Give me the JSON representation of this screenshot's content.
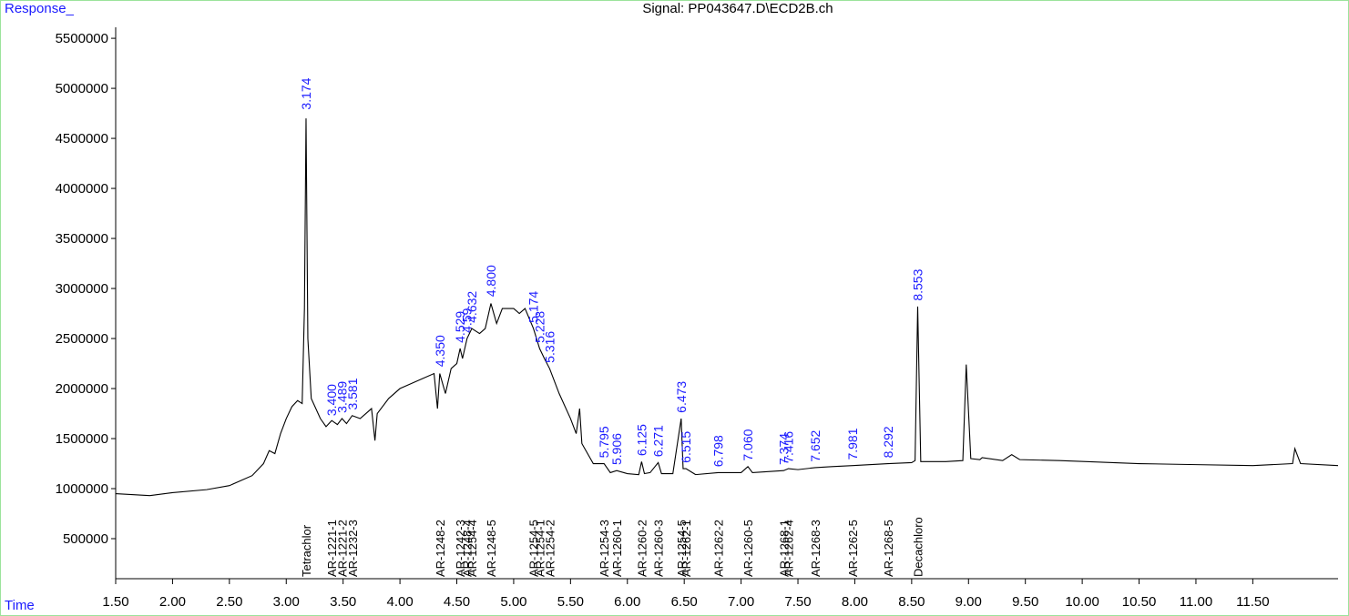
{
  "chart_data": {
    "type": "line",
    "title": "Signal: PP043647.D\\ECD2B.ch",
    "y_label": "Response_",
    "x_label": "Time",
    "xlim": [
      1.5,
      12.25
    ],
    "ylim": [
      100000,
      5610000
    ],
    "xticks": [
      {
        "value": 1.5,
        "label": "1.50"
      },
      {
        "value": 2,
        "label": "2.00"
      },
      {
        "value": 2.5,
        "label": "2.50"
      },
      {
        "value": 3,
        "label": "3.00"
      },
      {
        "value": 3.5,
        "label": "3.50"
      },
      {
        "value": 4,
        "label": "4.00"
      },
      {
        "value": 4.5,
        "label": "4.50"
      },
      {
        "value": 5,
        "label": "5.00"
      },
      {
        "value": 5.5,
        "label": "5.50"
      },
      {
        "value": 6,
        "label": "6.00"
      },
      {
        "value": 6.5,
        "label": "6.50"
      },
      {
        "value": 7,
        "label": "7.00"
      },
      {
        "value": 7.5,
        "label": "7.50"
      },
      {
        "value": 8,
        "label": "8.00"
      },
      {
        "value": 8.5,
        "label": "8.50"
      },
      {
        "value": 9,
        "label": "9.00"
      },
      {
        "value": 9.5,
        "label": "9.50"
      },
      {
        "value": 10,
        "label": "10.00"
      },
      {
        "value": 10.5,
        "label": "10.50"
      },
      {
        "value": 11,
        "label": "11.00"
      },
      {
        "value": 11.5,
        "label": "11.50"
      }
    ],
    "yticks": [
      500000,
      1000000,
      1500000,
      2000000,
      2500000,
      3000000,
      3500000,
      4000000,
      4500000,
      5000000,
      5500000
    ],
    "x": [
      1.5,
      1.8,
      2.0,
      2.3,
      2.5,
      2.7,
      2.8,
      2.85,
      2.9,
      2.95,
      3.0,
      3.05,
      3.1,
      3.14,
      3.16,
      3.174,
      3.19,
      3.22,
      3.3,
      3.35,
      3.4,
      3.45,
      3.49,
      3.53,
      3.58,
      3.65,
      3.7,
      3.75,
      3.78,
      3.8,
      3.9,
      4.0,
      4.1,
      4.2,
      4.3,
      4.33,
      4.35,
      4.4,
      4.45,
      4.5,
      4.529,
      4.55,
      4.59,
      4.632,
      4.7,
      4.75,
      4.8,
      4.85,
      4.9,
      5.0,
      5.05,
      5.1,
      5.174,
      5.228,
      5.27,
      5.316,
      5.4,
      5.5,
      5.55,
      5.58,
      5.6,
      5.7,
      5.795,
      5.85,
      5.906,
      6.0,
      6.1,
      6.125,
      6.15,
      6.2,
      6.271,
      6.3,
      6.4,
      6.473,
      6.49,
      6.515,
      6.6,
      6.798,
      7.0,
      7.06,
      7.1,
      7.374,
      7.416,
      7.5,
      7.652,
      7.8,
      7.981,
      8.292,
      8.5,
      8.53,
      8.553,
      8.58,
      8.8,
      8.95,
      8.98,
      9.02,
      9.1,
      9.12,
      9.3,
      9.38,
      9.45,
      9.8,
      10.5,
      11.0,
      11.5,
      11.85,
      11.87,
      11.92,
      12.25
    ],
    "series": [
      {
        "name": "ECD2B",
        "color": "#000000",
        "values": [
          950000,
          930000,
          960000,
          990000,
          1030000,
          1130000,
          1250000,
          1380000,
          1350000,
          1550000,
          1700000,
          1820000,
          1880000,
          1850000,
          2800000,
          4700000,
          2500000,
          1900000,
          1700000,
          1620000,
          1680000,
          1640000,
          1700000,
          1650000,
          1730000,
          1700000,
          1750000,
          1800000,
          1480000,
          1750000,
          1900000,
          2000000,
          2050000,
          2100000,
          2150000,
          1800000,
          2150000,
          1950000,
          2200000,
          2250000,
          2400000,
          2300000,
          2500000,
          2600000,
          2550000,
          2600000,
          2850000,
          2650000,
          2800000,
          2800000,
          2750000,
          2800000,
          2600000,
          2400000,
          2300000,
          2200000,
          1950000,
          1700000,
          1550000,
          1800000,
          1450000,
          1250000,
          1250000,
          1160000,
          1180000,
          1150000,
          1140000,
          1270000,
          1150000,
          1160000,
          1260000,
          1150000,
          1150000,
          1700000,
          1200000,
          1200000,
          1140000,
          1160000,
          1160000,
          1220000,
          1160000,
          1180000,
          1200000,
          1190000,
          1210000,
          1220000,
          1230000,
          1250000,
          1260000,
          1280000,
          2820000,
          1270000,
          1270000,
          1280000,
          2240000,
          1300000,
          1290000,
          1310000,
          1280000,
          1340000,
          1290000,
          1280000,
          1250000,
          1240000,
          1230000,
          1250000,
          1400000,
          1250000,
          1230000
        ]
      }
    ],
    "peaks": [
      {
        "value": 3.174,
        "label": "3.174",
        "response": 4750000
      },
      {
        "value": 3.4,
        "label": "3.400",
        "response": 1690000
      },
      {
        "value": 3.489,
        "label": "3.489",
        "response": 1720000
      },
      {
        "value": 3.581,
        "label": "3.581",
        "response": 1750000
      },
      {
        "value": 4.35,
        "label": "4.350",
        "response": 2180000
      },
      {
        "value": 4.529,
        "label": "4.529",
        "response": 2420000
      },
      {
        "value": 4.59,
        "label": "4.59",
        "response": 2520000
      },
      {
        "value": 4.632,
        "label": "4.632",
        "response": 2620000
      },
      {
        "value": 4.8,
        "label": "4.800",
        "response": 2880000
      },
      {
        "value": 5.174,
        "label": "5.174",
        "response": 2620000
      },
      {
        "value": 5.228,
        "label": "5.228",
        "response": 2420000
      },
      {
        "value": 5.316,
        "label": "5.316",
        "response": 2220000
      },
      {
        "value": 5.795,
        "label": "5.795",
        "response": 1270000
      },
      {
        "value": 5.906,
        "label": "5.906",
        "response": 1200000
      },
      {
        "value": 6.125,
        "label": "6.125",
        "response": 1290000
      },
      {
        "value": 6.271,
        "label": "6.271",
        "response": 1280000
      },
      {
        "value": 6.473,
        "label": "6.473",
        "response": 1720000
      },
      {
        "value": 6.515,
        "label": "6.515",
        "response": 1220000
      },
      {
        "value": 6.798,
        "label": "6.798",
        "response": 1180000
      },
      {
        "value": 7.06,
        "label": "7.060",
        "response": 1240000
      },
      {
        "value": 7.374,
        "label": "7.374",
        "response": 1200000
      },
      {
        "value": 7.416,
        "label": "7.416",
        "response": 1220000
      },
      {
        "value": 7.652,
        "label": "7.652",
        "response": 1230000
      },
      {
        "value": 7.981,
        "label": "7.981",
        "response": 1250000
      },
      {
        "value": 8.292,
        "label": "8.292",
        "response": 1270000
      },
      {
        "value": 8.553,
        "label": "8.553",
        "response": 2840000
      }
    ],
    "compounds": [
      {
        "name": "Tetrachlor",
        "time": 3.174
      },
      {
        "name": "AR-1221-1",
        "time": 3.4
      },
      {
        "name": "AR-1221-2",
        "time": 3.489
      },
      {
        "name": "AR-1232-3",
        "time": 3.581
      },
      {
        "name": "AR-1248-2",
        "time": 4.35
      },
      {
        "name": "AR-1242-3",
        "time": 4.529
      },
      {
        "name": "AR-1248-4",
        "time": 4.59
      },
      {
        "name": "AR-1254-4",
        "time": 4.632
      },
      {
        "name": "AR-1248-5",
        "time": 4.8
      },
      {
        "name": "AR-1254-5",
        "time": 5.174
      },
      {
        "name": "AR-1254-1",
        "time": 5.228
      },
      {
        "name": "AR-1254-2",
        "time": 5.316
      },
      {
        "name": "AR-1254-3",
        "time": 5.795
      },
      {
        "name": "AR-1260-1",
        "time": 5.906
      },
      {
        "name": "AR-1260-2",
        "time": 6.125
      },
      {
        "name": "AR-1260-3",
        "time": 6.271
      },
      {
        "name": "AR-1254-5",
        "time": 6.473
      },
      {
        "name": "AR-1262-1",
        "time": 6.515
      },
      {
        "name": "AR-1262-2",
        "time": 6.798
      },
      {
        "name": "AR-1260-5",
        "time": 7.06
      },
      {
        "name": "AR-1268-1",
        "time": 7.374
      },
      {
        "name": "AR-1262-4",
        "time": 7.416
      },
      {
        "name": "AR-1268-3",
        "time": 7.652
      },
      {
        "name": "AR-1262-5",
        "time": 7.981
      },
      {
        "name": "AR-1268-5",
        "time": 8.292
      },
      {
        "name": "Decachloro",
        "time": 8.553
      }
    ]
  }
}
